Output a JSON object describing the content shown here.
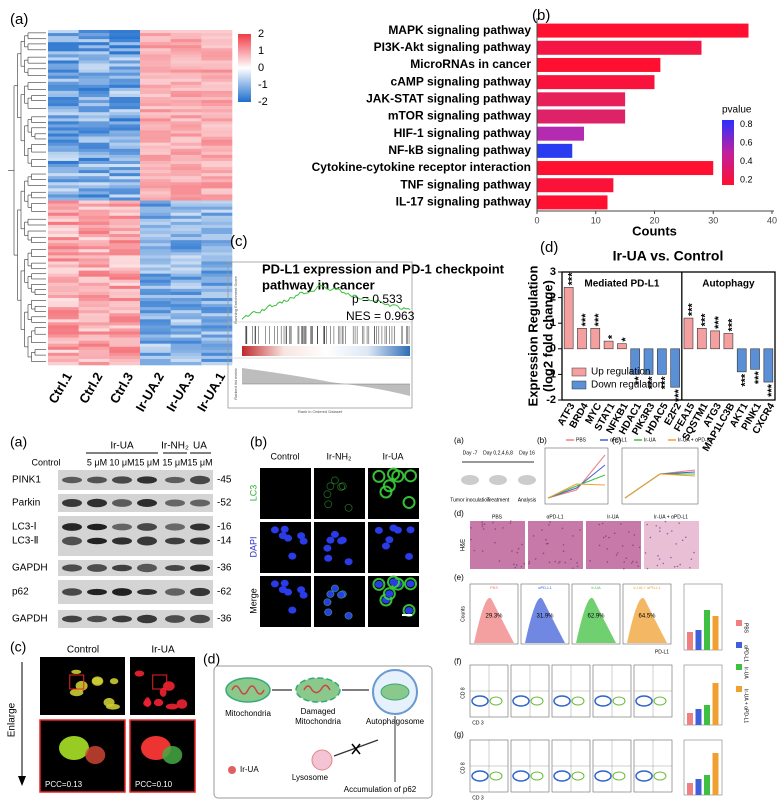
{
  "heatmap": {
    "label": "(a)",
    "colorbar_ticks": [
      2,
      1,
      0,
      -1,
      -2
    ],
    "columns": [
      "Ctrl.1",
      "Ctrl.2",
      "Ctrl.3",
      "Ir-UA.2",
      "Ir-UA.3",
      "Ir-UA.1"
    ]
  },
  "chart_data": [
    {
      "type": "bar",
      "label": "(b)",
      "orientation": "horizontal",
      "categories": [
        "MAPK signaling pathway",
        "PI3K-Akt signaling pathway",
        "MicroRNAs in cancer",
        "cAMP signaling pathway",
        "JAK-STAT signaling pathway",
        "mTOR signaling pathway",
        "HIF-1 signaling pathway",
        "NF-kB signaling pathway",
        "Cytokine-cytokine receptor interaction",
        "TNF signaling pathway",
        "IL-17 signaling pathway"
      ],
      "values": [
        36,
        28,
        21,
        20,
        15,
        15,
        8,
        6,
        30,
        13,
        12
      ],
      "colors": [
        "#ff1030",
        "#f51545",
        "#ff1030",
        "#f8123c",
        "#e8205a",
        "#dd2268",
        "#b42ab0",
        "#2a3cf0",
        "#ff1030",
        "#fa1238",
        "#ff1030"
      ],
      "xlabel": "Counts",
      "xlim": [
        0,
        40
      ],
      "xticks": [
        0,
        10,
        20,
        30,
        40
      ],
      "legend": {
        "title": "pvalue",
        "lim": [
          0.15,
          0.85
        ],
        "ticks": [
          0.8,
          0.6,
          0.4,
          0.2
        ],
        "colors": [
          "#ff1030",
          "#c020a0",
          "#2a30ff"
        ]
      }
    },
    {
      "type": "bar",
      "label": "(d)",
      "title": "Ir-UA vs. Control",
      "ylabel": [
        "Expression Regulation",
        "(log2 fold change)"
      ],
      "groups": [
        "Mediated PD-L1",
        "Autophagy"
      ],
      "categories": [
        "ATF3",
        "BRD4",
        "MYC",
        "STAT1",
        "NFKB1",
        "HDAC1",
        "PIK3R3",
        "HDAC5",
        "E2F2",
        "FEA15",
        "SQSTM1",
        "ATG3",
        "MAP1LC3B",
        "AKT1",
        "PINK1",
        "CXCR4"
      ],
      "values": [
        2.4,
        0.8,
        0.8,
        0.3,
        0.2,
        -1.0,
        -1.0,
        -1.0,
        -1.5,
        1.2,
        0.8,
        0.7,
        0.6,
        -0.9,
        -0.8,
        -1.3
      ],
      "significance": [
        "***",
        "***",
        "***",
        "*",
        "*",
        "**",
        "***",
        "***",
        "***",
        "***",
        "***",
        "***",
        "***",
        "***",
        "***",
        "***"
      ],
      "ylim": [
        -2,
        3
      ],
      "yticks": [
        -2,
        -1,
        0,
        1,
        2,
        3
      ],
      "series": [
        {
          "name": "Up regulation",
          "color": "#f4a0a0"
        },
        {
          "name": "Down regulation",
          "color": "#5b8fd6"
        }
      ]
    }
  ],
  "gsea": {
    "label": "(c)",
    "title_lines": [
      "PD-L1 expression and PD-1 checkpoint",
      "pathway in cancer"
    ],
    "p": "p = 0.533",
    "nes": "NES = 0.963",
    "y_label": "Running Enrichment Score",
    "y2_label": "Ranked list metric",
    "x_label": "Rank in Ordered Dataset"
  },
  "western": {
    "label": "(a)",
    "groups": [
      "Ir-UA",
      "Ir-NH₂",
      "UA"
    ],
    "lanes": [
      "Control",
      "5 μM",
      "10 μM",
      "15 μM",
      "15 μM",
      "15 μM"
    ],
    "rows": [
      {
        "name": "PINK1",
        "mw": -45
      },
      {
        "name": "Parkin",
        "mw": -52
      },
      {
        "name": "LC3-Ⅰ",
        "mw": -16
      },
      {
        "name": "LC3-Ⅱ",
        "mw": -14
      },
      {
        "name": "GAPDH",
        "mw": -36
      },
      {
        "name": "p62",
        "mw": -62
      },
      {
        "name": "GAPDH",
        "mw": -36
      }
    ]
  },
  "fluorescence": {
    "label": "(b)",
    "columns": [
      "Control",
      "Ir-NH₂",
      "Ir-UA"
    ],
    "rows": [
      "LC3",
      "DAPI",
      "Merge"
    ]
  },
  "colocalization": {
    "label": "(c)",
    "columns": [
      "Control",
      "Ir-UA"
    ],
    "side": "Enlarge",
    "pcc": [
      "PCC=0.13",
      "PCC=0.10"
    ]
  },
  "schematic": {
    "label": "(d)",
    "mitochondria": "Mitochondria",
    "damaged": [
      "Damaged",
      "Mitochondria"
    ],
    "autophagosome": "Autophagosome",
    "drug": "Ir-UA",
    "lysosome": "Lysosome",
    "result": "Accumulation of p62"
  },
  "invivo": {
    "labels": [
      "(a)",
      "(b)",
      "(c)",
      "(d)",
      "(e)",
      "(f)",
      "(g)"
    ],
    "days": [
      "Day -7",
      "Day 0,2,4,6,8",
      "Day 16"
    ],
    "steps": [
      "Tumor inoculation",
      "Treatment",
      "Analysis"
    ],
    "groups": [
      "PBS",
      "αPD-L1",
      "Ir-UA",
      "Ir-UA + αPD-L1"
    ],
    "group_colors": [
      "#f08080",
      "#4060d8",
      "#40c040",
      "#f0a030"
    ],
    "stain": "H&E",
    "flow_percent": [
      "29.3%",
      "31.9%",
      "62.9%",
      "64.5%"
    ],
    "flow_x": "PD-L1",
    "flow_y": "Counts",
    "cd_x": "CD 3",
    "cd_y": "CD 8"
  }
}
